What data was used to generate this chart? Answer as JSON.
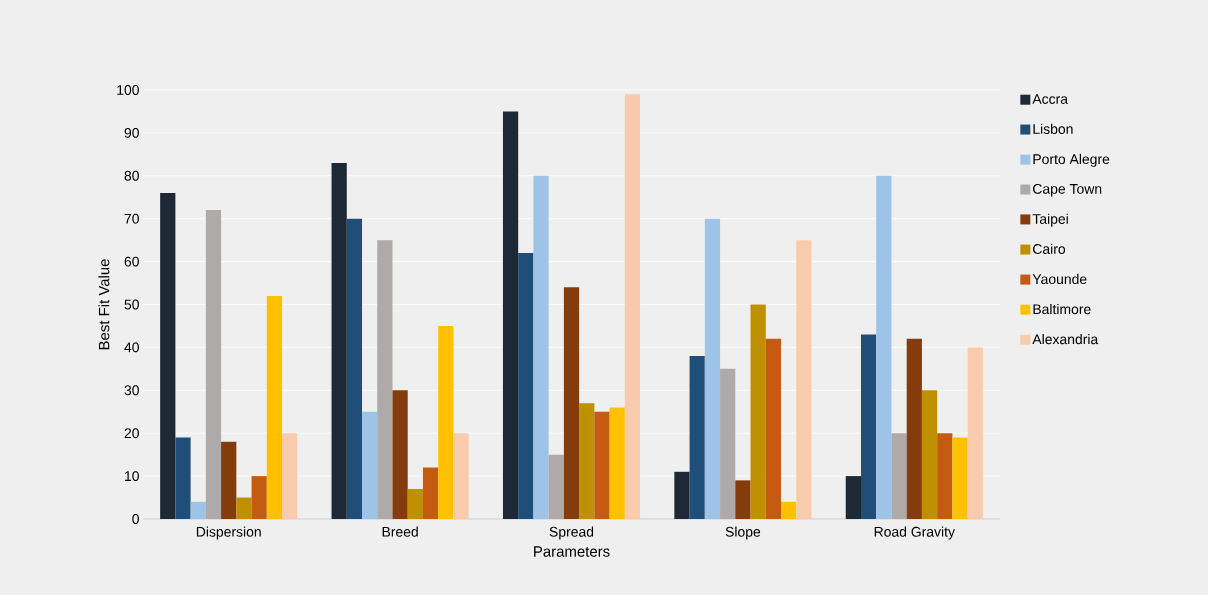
{
  "chart_data": {
    "type": "bar",
    "xlabel": "Parameters",
    "ylabel": "Best Fit Value",
    "categories": [
      "Dispersion",
      "Breed",
      "Spread",
      "Slope",
      "Road Gravity"
    ],
    "series": [
      {
        "name": "Accra",
        "color": "#1f2835",
        "values": [
          76,
          83,
          95,
          11,
          10
        ]
      },
      {
        "name": "Lisbon",
        "color": "#1f4e79",
        "values": [
          19,
          70,
          62,
          38,
          43
        ]
      },
      {
        "name": "Porto Alegre",
        "color": "#9dc3e6",
        "values": [
          4,
          25,
          80,
          70,
          80
        ]
      },
      {
        "name": "Cape Town",
        "color": "#aeaaaa",
        "values": [
          72,
          65,
          15,
          35,
          20
        ]
      },
      {
        "name": "Taipei",
        "color": "#843c0c",
        "values": [
          18,
          30,
          54,
          9,
          42
        ]
      },
      {
        "name": "Cairo",
        "color": "#bf9000",
        "values": [
          5,
          7,
          27,
          50,
          30
        ]
      },
      {
        "name": "Yaounde",
        "color": "#c55a11",
        "values": [
          10,
          12,
          25,
          42,
          20
        ]
      },
      {
        "name": "Baltimore",
        "color": "#ffc000",
        "values": [
          52,
          45,
          26,
          4,
          19
        ]
      },
      {
        "name": "Alexandria",
        "color": "#f8cbad",
        "values": [
          20,
          20,
          99,
          65,
          40
        ]
      }
    ],
    "ylim": [
      0,
      100
    ],
    "yticks": [
      0,
      10,
      20,
      30,
      40,
      50,
      60,
      70,
      80,
      90,
      100
    ],
    "grid": "y",
    "legend": "right"
  }
}
